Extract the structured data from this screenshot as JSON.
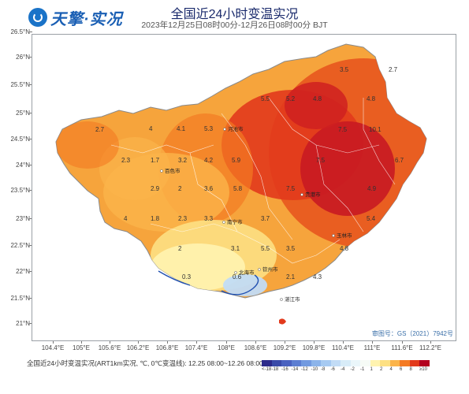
{
  "header": {
    "logo_text": "天擎·实况",
    "title": "全国近24小时变温实况",
    "subtitle": "2023年12月25日08时00分-12月26日08时00分 BJT"
  },
  "axes": {
    "y_labels": [
      "26.5°N",
      "26°N",
      "25.5°N",
      "25°N",
      "24.5°N",
      "24°N",
      "23.5°N",
      "23°N",
      "22.5°N",
      "22°N",
      "21.5°N",
      "21°N"
    ],
    "x_labels": [
      "104.4°E",
      "105°E",
      "105.6°E",
      "106.2°E",
      "106.8°E",
      "107.4°E",
      "108°E",
      "108.6°E",
      "109.2°E",
      "109.8°E",
      "110.4°E",
      "111°E",
      "111.6°E",
      "112.2°E"
    ]
  },
  "map": {
    "values": [
      {
        "v": "2.7"
      },
      {
        "v": "4"
      },
      {
        "v": "4.1"
      },
      {
        "v": "5.3"
      },
      {
        "v": "3.5"
      },
      {
        "v": "2.7"
      },
      {
        "v": "5.5"
      },
      {
        "v": "5.2"
      },
      {
        "v": "4.8"
      },
      {
        "v": "4.8"
      },
      {
        "v": "7.5"
      },
      {
        "v": "10.1"
      },
      {
        "v": "2.3"
      },
      {
        "v": "1.7"
      },
      {
        "v": "3.2"
      },
      {
        "v": "4.2"
      },
      {
        "v": "5.9"
      },
      {
        "v": "7.5"
      },
      {
        "v": "6.7"
      },
      {
        "v": "2.9"
      },
      {
        "v": "2"
      },
      {
        "v": "3.6"
      },
      {
        "v": "5.8"
      },
      {
        "v": "7.5"
      },
      {
        "v": "4.9"
      },
      {
        "v": "4"
      },
      {
        "v": "1.8"
      },
      {
        "v": "2.3"
      },
      {
        "v": "3.3"
      },
      {
        "v": "3.7"
      },
      {
        "v": "5.4"
      },
      {
        "v": "2"
      },
      {
        "v": "3.1"
      },
      {
        "v": "5.5"
      },
      {
        "v": "3.5"
      },
      {
        "v": "4.8"
      },
      {
        "v": "0.3"
      },
      {
        "v": "0.6"
      },
      {
        "v": "2.1"
      },
      {
        "v": "4.3"
      }
    ],
    "cities": [
      {
        "name": "河池市"
      },
      {
        "name": "百色市"
      },
      {
        "name": "南宁市"
      },
      {
        "name": "北海市"
      },
      {
        "name": "贵港市"
      },
      {
        "name": "玉林市"
      },
      {
        "name": "钦州市"
      },
      {
        "name": "湛江市"
      }
    ]
  },
  "approval_number": "审图号：GS（2021）7942号",
  "footer": {
    "caption": "全国近24小时变温实况(ART1km实况, ℃, 0℃变温线): 12.25 08:00~12.26 08:00",
    "legend": [
      {
        "label": "<-18",
        "color": "#2c2a8a"
      },
      {
        "label": "-18",
        "color": "#3a4aa8"
      },
      {
        "label": "-16",
        "color": "#4a62c0"
      },
      {
        "label": "-14",
        "color": "#5c7ed2"
      },
      {
        "label": "-12",
        "color": "#729ae0"
      },
      {
        "label": "-10",
        "color": "#8cb4ea"
      },
      {
        "label": "-8",
        "color": "#a6caf2"
      },
      {
        "label": "-6",
        "color": "#c2dcf6"
      },
      {
        "label": "-4",
        "color": "#d8ecf8"
      },
      {
        "label": "-2",
        "color": "#eaf6fa"
      },
      {
        "label": "-1",
        "color": "#f6fbf6"
      },
      {
        "label": "1",
        "color": "#fff3b0"
      },
      {
        "label": "2",
        "color": "#fde083"
      },
      {
        "label": "4",
        "color": "#fbb44a"
      },
      {
        "label": "6",
        "color": "#f47a22"
      },
      {
        "label": "8",
        "color": "#e23a1c"
      },
      {
        "label": "≥10",
        "color": "#b2001e"
      }
    ]
  }
}
